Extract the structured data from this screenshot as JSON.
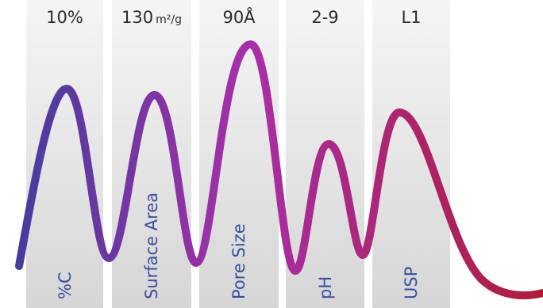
{
  "colors": {
    "column_top": "#f5f5f5",
    "column_bottom": "#d6d6d6",
    "wave_start": "#3d3e9c",
    "wave_mid": "#a72fa8",
    "wave_end": "#b01c3c",
    "label_color": "#3a4ea0"
  },
  "specs": [
    {
      "value": "10%",
      "unit": "",
      "label": "%C"
    },
    {
      "value": "130",
      "unit": "m²/g",
      "label": "Surface Area"
    },
    {
      "value": "90Å",
      "unit": "",
      "label": "Pore Size"
    },
    {
      "value": "2-9",
      "unit": "",
      "label": "pH"
    },
    {
      "value": "L1",
      "unit": "",
      "label": "USP"
    }
  ]
}
